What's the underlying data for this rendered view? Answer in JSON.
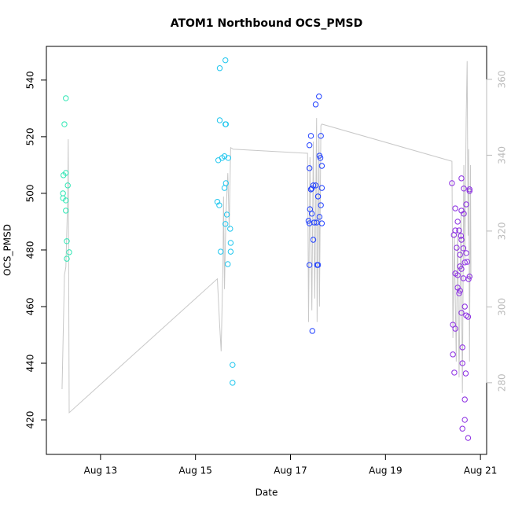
{
  "chart_data": {
    "type": "scatter",
    "title": "ATOM1 Northbound OCS_PMSD",
    "x_label": "Date",
    "y_label": "OCS_PMSD",
    "xlim": [
      11.86,
      21.13
    ],
    "xticks": [
      {
        "value": 13,
        "label": "Aug 13"
      },
      {
        "value": 15,
        "label": "Aug 15"
      },
      {
        "value": 17,
        "label": "Aug 17"
      },
      {
        "value": 19,
        "label": "Aug 19"
      },
      {
        "value": 21,
        "label": "Aug 21"
      }
    ],
    "ylim": [
      407.8,
      551.9
    ],
    "yticks": [
      420,
      440,
      460,
      480,
      500,
      520,
      540
    ],
    "y2lim": [
      261.1,
      368.7
    ],
    "y2ticks": [
      280,
      300,
      320,
      340,
      360
    ],
    "y2_color": "#bbbbbb",
    "series": [
      {
        "color": "#2fe6b4",
        "x": [
          12.27,
          12.24,
          12.22,
          12.27,
          12.21,
          12.21,
          12.27,
          12.31,
          12.27,
          12.29,
          12.34,
          12.29
        ],
        "values": [
          533.6,
          524.4,
          506.4,
          507.2,
          500,
          498.3,
          497.5,
          502.8,
          493.9,
          483.1,
          479.2,
          476.9
        ]
      },
      {
        "color": "#1fc6ee",
        "x": [
          15.63,
          15.51,
          15.51,
          15.63,
          15.64,
          15.61,
          15.69,
          15.56,
          15.48,
          15.64,
          15.61,
          15.46,
          15.5,
          15.66,
          15.63,
          15.73,
          15.74,
          15.53,
          15.74,
          15.68,
          15.78,
          15.78
        ],
        "values": [
          547,
          544.2,
          525.8,
          524.4,
          524.4,
          513.1,
          512.5,
          512.5,
          511.7,
          503.6,
          501.9,
          497,
          495.8,
          492.5,
          489.2,
          487.5,
          482.5,
          479.4,
          479.4,
          475,
          439.4,
          433.1
        ]
      },
      {
        "color": "#1f3fff",
        "x": [
          17.6,
          17.53,
          17.43,
          17.64,
          17.4,
          17.61,
          17.63,
          17.66,
          17.4,
          17.48,
          17.53,
          17.45,
          17.66,
          17.43,
          17.58,
          17.64,
          17.41,
          17.45,
          17.61,
          17.38,
          17.5,
          17.55,
          17.66,
          17.4,
          17.48,
          17.4,
          17.56,
          17.58,
          17.46
        ],
        "values": [
          534.2,
          531.4,
          520.3,
          520.3,
          517,
          513.3,
          512.5,
          509.7,
          508.9,
          502.8,
          502.8,
          501.7,
          501.9,
          501.4,
          498.9,
          495.8,
          494.4,
          492.8,
          491.7,
          490.3,
          489.7,
          489.7,
          489.4,
          489.4,
          483.6,
          474.7,
          474.7,
          474.7,
          451.4
        ]
      },
      {
        "color": "#8a2be2",
        "x": [
          20.4,
          20.6,
          20.65,
          20.77,
          20.77,
          20.7,
          20.47,
          20.6,
          20.65,
          20.52,
          20.47,
          20.55,
          20.44,
          20.59,
          20.6,
          20.5,
          20.64,
          20.7,
          20.57,
          20.67,
          20.72,
          20.57,
          20.6,
          20.47,
          20.52,
          20.77,
          20.64,
          20.75,
          20.52,
          20.57,
          20.55,
          20.6,
          20.7,
          20.74,
          20.67,
          20.42,
          20.47,
          20.62,
          20.42,
          20.62,
          20.45,
          20.69,
          20.67,
          20.67,
          20.62,
          20.74
        ],
        "values": [
          503.6,
          505.3,
          501.7,
          501.4,
          500.8,
          496.1,
          494.7,
          493.9,
          492.8,
          490,
          486.9,
          486.9,
          485.3,
          485,
          483.6,
          480.8,
          480.6,
          478.9,
          478.3,
          475.6,
          475.8,
          474.2,
          473.3,
          471.7,
          471.1,
          470.6,
          470,
          469.7,
          466.7,
          465.6,
          464.7,
          457.8,
          456.9,
          456.4,
          460,
          453.6,
          452.2,
          445.6,
          443.1,
          440,
          436.7,
          436.4,
          427.2,
          420,
          416.9,
          413.6
        ]
      },
      {
        "type": "line",
        "axis": "y2",
        "color": "#c8c8c8",
        "x": [
          12.19,
          12.24,
          12.27,
          12.31,
          12.32,
          12.34,
          15.46,
          15.51,
          15.54,
          15.58,
          15.59,
          15.61,
          15.64,
          15.68,
          15.71,
          15.74,
          15.79,
          17.36,
          17.38,
          17.41,
          17.45,
          17.48,
          17.51,
          17.55,
          17.56,
          17.6,
          17.61,
          17.64,
          17.66,
          20.4,
          20.42,
          20.45,
          20.49,
          20.52,
          20.55,
          20.59,
          20.62,
          20.65,
          20.67,
          20.7,
          20.72,
          20.74,
          20.75,
          20.77,
          20.79,
          20.8
        ],
        "values": [
          278.3,
          308.4,
          310.5,
          329.1,
          344.2,
          272.1,
          307.4,
          294.9,
          288.3,
          312.5,
          329.1,
          304.7,
          324,
          335.3,
          320.8,
          342,
          341.6,
          340.5,
          296,
          339.5,
          299.1,
          343.6,
          302.2,
          349.8,
          296,
          344.7,
          300.1,
          347.8,
          348.2,
          338.4,
          291.8,
          318.8,
          285.6,
          320.8,
          281.4,
          325,
          277.3,
          337.4,
          312.5,
          349.8,
          364.8,
          318.8,
          341.6,
          285.6,
          337.4,
          307.4
        ]
      }
    ]
  }
}
